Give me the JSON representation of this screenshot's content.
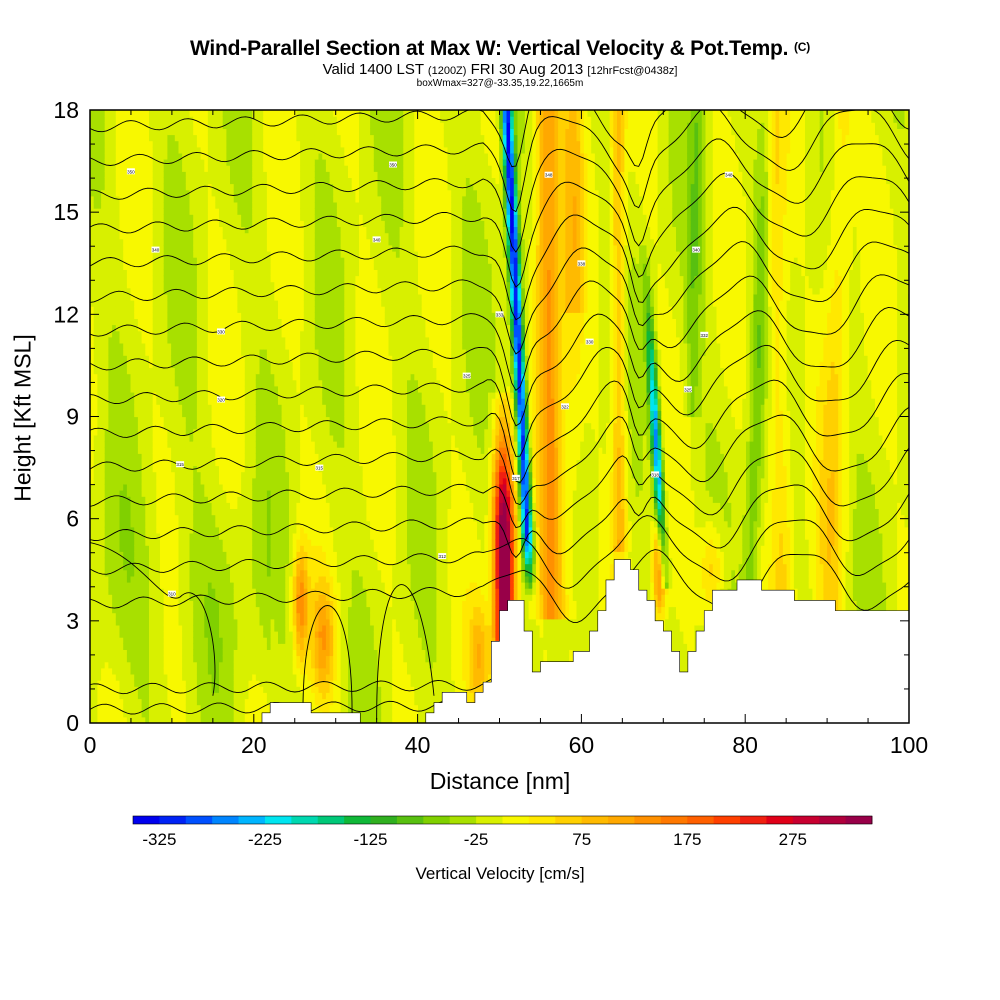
{
  "header": {
    "title": "Wind-Parallel Section at Max W: Vertical Velocity & Pot.Temp.",
    "copyright": "(C)",
    "valid": "Valid 1400 LST",
    "valid_z": "(1200Z)",
    "date": "FRI 30 Aug 2013",
    "forecast": "[12hrFcst@0438z]",
    "box_info": "boxWmax=327@-33.35,19.22,1665m"
  },
  "chart_data": {
    "type": "heatmap",
    "xlabel": "Distance [nm]",
    "ylabel": "Height [Kft MSL]",
    "xlim": [
      0,
      100
    ],
    "ylim": [
      0,
      18
    ],
    "x_ticks": [
      0,
      20,
      40,
      60,
      80,
      100
    ],
    "y_ticks": [
      0,
      3,
      6,
      9,
      12,
      15,
      18
    ],
    "colorbar": {
      "label": "Vertical Velocity [cm/s]",
      "tick_labels": [
        -325,
        -225,
        -125,
        -25,
        75,
        175,
        275
      ],
      "levels": [
        -350,
        -325,
        -300,
        -275,
        -250,
        -225,
        -200,
        -175,
        -150,
        -125,
        -100,
        -75,
        -50,
        -25,
        0,
        25,
        50,
        75,
        100,
        125,
        150,
        175,
        200,
        225,
        250,
        275,
        300,
        325,
        350
      ],
      "colors": [
        "#0000ee",
        "#0022f5",
        "#0050ff",
        "#0085ff",
        "#00b5ff",
        "#00e5f0",
        "#00d8b0",
        "#00c878",
        "#10b838",
        "#30b020",
        "#58c010",
        "#80d000",
        "#a8e000",
        "#d8f000",
        "#f8f800",
        "#ffe800",
        "#ffd000",
        "#ffba00",
        "#ffa800",
        "#ff9000",
        "#ff7800",
        "#ff6000",
        "#ff4000",
        "#f02010",
        "#e00018",
        "#c80030",
        "#b0003c",
        "#980048"
      ]
    },
    "updrafts": [
      {
        "x": 50.6,
        "y_top": 9.5,
        "peak": 327
      },
      {
        "x": 25.5,
        "y_top": 5.5,
        "peak": 150
      },
      {
        "x": 28.5,
        "y_top": 4.5,
        "peak": 110
      },
      {
        "x": 56.0,
        "y_top": 18.0,
        "peak": 150
      },
      {
        "x": 64.5,
        "y_top": 18.0,
        "peak": 120
      },
      {
        "x": 69.0,
        "y_top": 6.5,
        "peak": 160
      }
    ],
    "downdrafts": [
      {
        "x": 52.5,
        "y_top": 18.0,
        "peak": -300
      },
      {
        "x": 68.0,
        "y_top": 12.0,
        "peak": -250
      }
    ],
    "terrain": [
      [
        20,
        0.3
      ],
      [
        24,
        0.6
      ],
      [
        27,
        0.4
      ],
      [
        30,
        0.3
      ],
      [
        34,
        0.0
      ],
      [
        40,
        0.0
      ],
      [
        42,
        0.6
      ],
      [
        44,
        1.0
      ],
      [
        46,
        0.6
      ],
      [
        48,
        1.2
      ],
      [
        50,
        3.3
      ],
      [
        52,
        3.6
      ],
      [
        54,
        1.6
      ],
      [
        58,
        1.9
      ],
      [
        60,
        2.1
      ],
      [
        62,
        3.3
      ],
      [
        64,
        4.9
      ],
      [
        66,
        4.4
      ],
      [
        68,
        3.6
      ],
      [
        70,
        2.6
      ],
      [
        72,
        1.6
      ],
      [
        74,
        2.6
      ],
      [
        76,
        3.8
      ],
      [
        80,
        4.2
      ],
      [
        84,
        3.8
      ],
      [
        88,
        3.6
      ],
      [
        92,
        3.3
      ],
      [
        100,
        3.3
      ]
    ],
    "theta_labels": [
      {
        "x": 5,
        "y": 16.2,
        "text": "350"
      },
      {
        "x": 8,
        "y": 13.9,
        "text": "340"
      },
      {
        "x": 16,
        "y": 11.5,
        "text": "330"
      },
      {
        "x": 16,
        "y": 9.5,
        "text": "320"
      },
      {
        "x": 11,
        "y": 7.6,
        "text": "315"
      },
      {
        "x": 10,
        "y": 3.8,
        "text": "310"
      },
      {
        "x": 28,
        "y": 7.5,
        "text": "315"
      },
      {
        "x": 35,
        "y": 14.2,
        "text": "340"
      },
      {
        "x": 37,
        "y": 16.4,
        "text": "350"
      },
      {
        "x": 46,
        "y": 10.2,
        "text": "325"
      },
      {
        "x": 43,
        "y": 4.9,
        "text": "312"
      },
      {
        "x": 50,
        "y": 12.0,
        "text": "333"
      },
      {
        "x": 52,
        "y": 7.2,
        "text": "317"
      },
      {
        "x": 56,
        "y": 16.1,
        "text": "348"
      },
      {
        "x": 58,
        "y": 9.3,
        "text": "322"
      },
      {
        "x": 60,
        "y": 13.5,
        "text": "338"
      },
      {
        "x": 61,
        "y": 11.2,
        "text": "330"
      },
      {
        "x": 69,
        "y": 7.3,
        "text": "318"
      },
      {
        "x": 73,
        "y": 9.8,
        "text": "325"
      },
      {
        "x": 74,
        "y": 13.9,
        "text": "340"
      },
      {
        "x": 75,
        "y": 11.4,
        "text": "332"
      },
      {
        "x": 78,
        "y": 16.1,
        "text": "348"
      }
    ]
  }
}
